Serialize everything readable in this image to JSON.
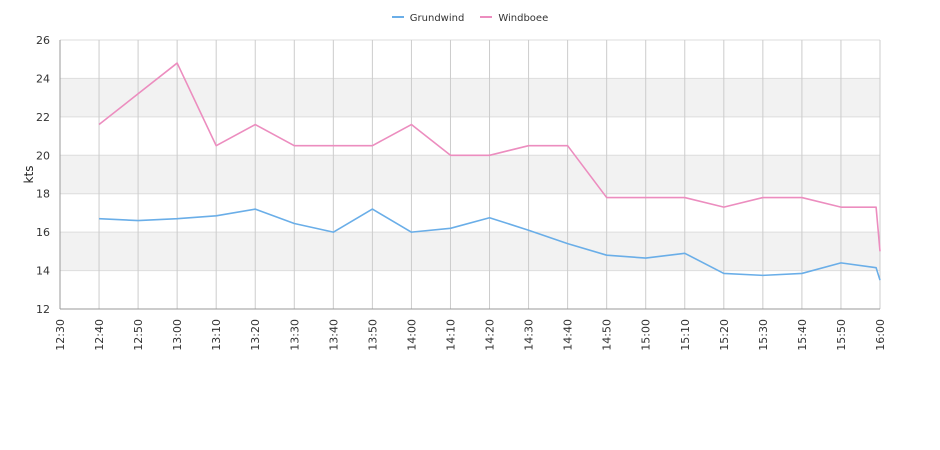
{
  "chart_data": {
    "type": "line",
    "ylabel": "kts",
    "ylim": [
      12,
      26
    ],
    "yticks": [
      12,
      14,
      16,
      18,
      20,
      22,
      24,
      26
    ],
    "x_ticks": [
      "12:30",
      "12:40",
      "12:50",
      "13:00",
      "13:10",
      "13:20",
      "13:30",
      "13:40",
      "13:50",
      "14:00",
      "14:10",
      "14:20",
      "14:30",
      "14:40",
      "14:50",
      "15:00",
      "15:10",
      "15:20",
      "15:30",
      "15:40",
      "15:50",
      "16:00"
    ],
    "x_range": [
      "12:30",
      "16:00"
    ],
    "grid": true,
    "alternating_bands": true,
    "legend_position": "top-center",
    "series": [
      {
        "name": "Grundwind",
        "color": "#6aaee8",
        "points": [
          [
            "12:40",
            16.7
          ],
          [
            "12:50",
            16.6
          ],
          [
            "13:00",
            16.7
          ],
          [
            "13:10",
            16.85
          ],
          [
            "13:20",
            17.2
          ],
          [
            "13:30",
            16.45
          ],
          [
            "13:40",
            16.0
          ],
          [
            "13:50",
            17.2
          ],
          [
            "14:00",
            16.0
          ],
          [
            "14:10",
            16.2
          ],
          [
            "14:20",
            16.75
          ],
          [
            "14:30",
            16.1
          ],
          [
            "14:40",
            15.4
          ],
          [
            "14:50",
            14.8
          ],
          [
            "15:00",
            14.65
          ],
          [
            "15:10",
            14.9
          ],
          [
            "15:20",
            13.85
          ],
          [
            "15:30",
            13.75
          ],
          [
            "15:40",
            13.85
          ],
          [
            "15:50",
            14.4
          ],
          [
            "15:59",
            14.15
          ],
          [
            "16:00",
            13.5
          ]
        ]
      },
      {
        "name": "Windboee",
        "color": "#ec8dbf",
        "points": [
          [
            "12:40",
            21.6
          ],
          [
            "12:50",
            23.2
          ],
          [
            "13:00",
            24.8
          ],
          [
            "13:10",
            20.5
          ],
          [
            "13:20",
            21.6
          ],
          [
            "13:30",
            20.5
          ],
          [
            "13:40",
            20.5
          ],
          [
            "13:50",
            20.5
          ],
          [
            "14:00",
            21.6
          ],
          [
            "14:10",
            20.0
          ],
          [
            "14:20",
            20.0
          ],
          [
            "14:30",
            20.5
          ],
          [
            "14:40",
            20.5
          ],
          [
            "14:50",
            17.8
          ],
          [
            "15:00",
            17.8
          ],
          [
            "15:10",
            17.8
          ],
          [
            "15:20",
            17.3
          ],
          [
            "15:30",
            17.8
          ],
          [
            "15:40",
            17.8
          ],
          [
            "15:50",
            17.3
          ],
          [
            "15:59",
            17.3
          ],
          [
            "16:00",
            15.0
          ]
        ]
      }
    ]
  }
}
